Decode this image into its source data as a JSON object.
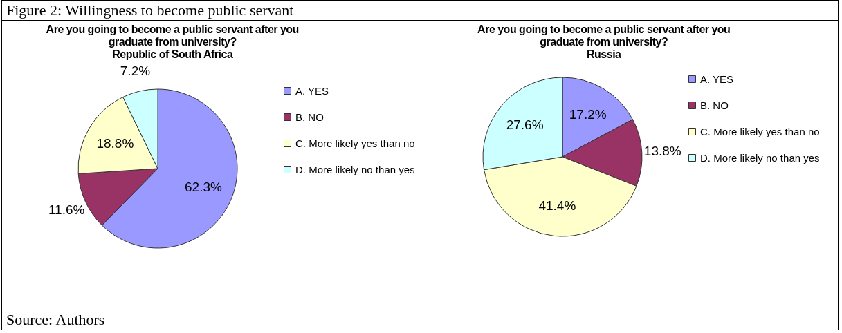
{
  "chart_data": [
    {
      "type": "pie",
      "title": "Are you going to become a public servant after you graduate from university?",
      "subtitle": "Republic of South Africa",
      "categories": [
        "A. YES",
        "B. NO",
        "C. More likely yes than no",
        "D. More likely no than yes"
      ],
      "values": [
        62.3,
        11.6,
        18.8,
        7.2
      ],
      "colors": [
        "#9999ff",
        "#993366",
        "#ffffcc",
        "#ccffff"
      ],
      "value_labels": [
        "62.3%",
        "11.6%",
        "18.8%",
        "7.2%"
      ],
      "legend": "right",
      "annotations": [
        "Figure 2: Willingness to become public servant",
        "Source: Authors"
      ]
    },
    {
      "type": "pie",
      "title": "Are you going to become a public servant after you graduate from university?",
      "subtitle": "Russia",
      "categories": [
        "A. YES",
        "B. NO",
        "C. More likely yes than no",
        "D. More likely no than yes"
      ],
      "values": [
        17.2,
        13.8,
        41.4,
        27.6
      ],
      "colors": [
        "#9999ff",
        "#993366",
        "#ffffcc",
        "#ccffff"
      ],
      "value_labels": [
        "17.2%",
        "13.8%",
        "41.4%",
        "27.6%"
      ],
      "legend": "right"
    }
  ]
}
